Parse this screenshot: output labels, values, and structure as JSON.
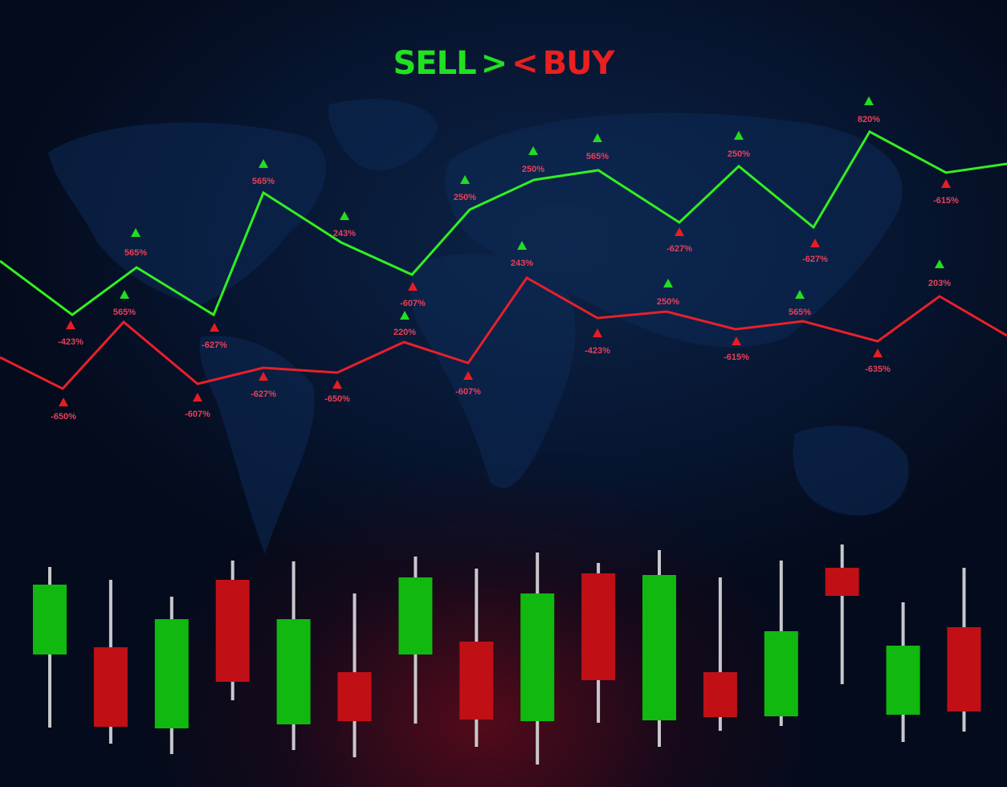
{
  "title": {
    "sell": "SELL",
    "gt": ">",
    "lt": "<",
    "buy": "BUY"
  },
  "colors": {
    "up": "#10b810",
    "down": "#c01016",
    "line_green": "#33ee22",
    "line_red": "#e8202a",
    "label": "#e8405a",
    "wick": "#c8c8cc",
    "background": "#071530"
  },
  "chart_data": [
    {
      "type": "line",
      "title": "",
      "xlabel": "",
      "ylabel": "",
      "grid": false,
      "series": [
        {
          "color": "#33ee22",
          "values": [
            65.5,
            58.8,
            64.7,
            58.8,
            74.0,
            67.8,
            63.8,
            71.9,
            75.6,
            76.8,
            70.3,
            77.3,
            69.7,
            81.6,
            76.5,
            77.6
          ]
        },
        {
          "color": "#e8202a",
          "values": [
            53.5,
            49.6,
            57.9,
            50.2,
            52.2,
            51.6,
            55.4,
            52.8,
            63.4,
            58.4,
            59.2,
            57.0,
            58.0,
            55.5,
            61.1,
            56.2
          ]
        }
      ],
      "annotations": [
        {
          "marker": "up-green",
          "text": "565%"
        },
        {
          "marker": "up-green",
          "text": "565%"
        },
        {
          "marker": "up-green",
          "text": "565%"
        },
        {
          "marker": "up-green",
          "text": "243%"
        },
        {
          "marker": "up-green",
          "text": "220%"
        },
        {
          "marker": "up-green",
          "text": "250%"
        },
        {
          "marker": "up-green",
          "text": "243%"
        },
        {
          "marker": "up-green",
          "text": "250%"
        },
        {
          "marker": "up-green",
          "text": "565%"
        },
        {
          "marker": "up-green",
          "text": "250%"
        },
        {
          "marker": "up-green",
          "text": "250%"
        },
        {
          "marker": "up-green",
          "text": "565%"
        },
        {
          "marker": "up-green",
          "text": "820%"
        },
        {
          "marker": "up-green",
          "text": "203%"
        },
        {
          "marker": "up-red",
          "text": "-423%"
        },
        {
          "marker": "up-red",
          "text": "-650%"
        },
        {
          "marker": "up-red",
          "text": "-627%"
        },
        {
          "marker": "up-red",
          "text": "-607%"
        },
        {
          "marker": "up-red",
          "text": "-627%"
        },
        {
          "marker": "up-red",
          "text": "-650%"
        },
        {
          "marker": "up-red",
          "text": "-607%"
        },
        {
          "marker": "up-red",
          "text": "-607%"
        },
        {
          "marker": "up-red",
          "text": "-423%"
        },
        {
          "marker": "up-red",
          "text": "-627%"
        },
        {
          "marker": "up-red",
          "text": "-615%"
        },
        {
          "marker": "up-red",
          "text": "-627%"
        },
        {
          "marker": "up-red",
          "text": "-635%"
        },
        {
          "marker": "up-red",
          "text": "-615%"
        }
      ]
    },
    {
      "type": "candlestick",
      "title": "",
      "grid": false,
      "candles": [
        {
          "open": 16.5,
          "high": 27.4,
          "low": 7.4,
          "close": 25.2
        },
        {
          "open": 17.4,
          "high": 25.8,
          "low": 5.4,
          "close": 7.5
        },
        {
          "open": 7.3,
          "high": 23.7,
          "low": 4.1,
          "close": 20.9
        },
        {
          "open": 25.8,
          "high": 28.2,
          "low": 10.8,
          "close": 13.1
        },
        {
          "open": 7.8,
          "high": 28.1,
          "low": 4.6,
          "close": 20.9
        },
        {
          "open": 14.3,
          "high": 24.1,
          "low": 3.7,
          "close": 8.2
        },
        {
          "open": 16.5,
          "high": 28.7,
          "low": 7.9,
          "close": 26.1
        },
        {
          "open": 18.1,
          "high": 27.2,
          "low": 5.0,
          "close": 8.4
        },
        {
          "open": 8.2,
          "high": 29.2,
          "low": 2.8,
          "close": 24.1
        },
        {
          "open": 26.6,
          "high": 27.9,
          "low": 8.0,
          "close": 13.3
        },
        {
          "open": 8.3,
          "high": 29.5,
          "low": 5.0,
          "close": 26.4
        },
        {
          "open": 14.3,
          "high": 26.1,
          "low": 7.0,
          "close": 8.7
        },
        {
          "open": 8.8,
          "high": 28.2,
          "low": 7.6,
          "close": 19.4
        },
        {
          "open": 27.3,
          "high": 30.2,
          "low": 12.8,
          "close": 23.8
        },
        {
          "open": 9.0,
          "high": 23.0,
          "low": 5.6,
          "close": 17.6
        },
        {
          "open": 19.9,
          "high": 27.3,
          "low": 6.9,
          "close": 9.4
        }
      ]
    }
  ]
}
